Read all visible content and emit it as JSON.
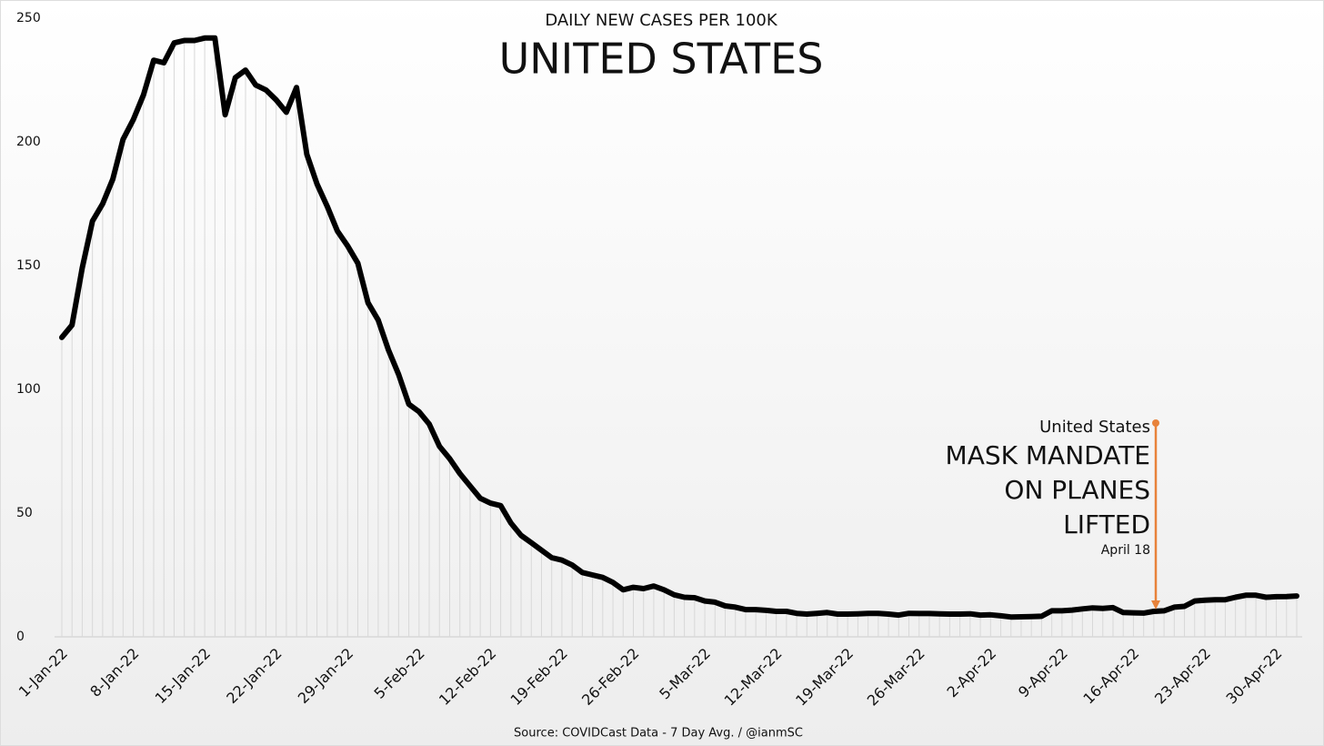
{
  "chart_data": {
    "type": "line",
    "title": "UNITED STATES",
    "subtitle": "DAILY NEW CASES PER 100K",
    "source": "Source: COVIDCast Data - 7 Day Avg. / @ianmSC",
    "categories": [
      "1-Jan-22",
      null,
      null,
      null,
      null,
      null,
      null,
      "8-Jan-22",
      null,
      null,
      null,
      null,
      null,
      null,
      "15-Jan-22",
      null,
      null,
      null,
      null,
      null,
      null,
      "22-Jan-22",
      null,
      null,
      null,
      null,
      null,
      null,
      "29-Jan-22",
      null,
      null,
      null,
      null,
      null,
      null,
      "5-Feb-22",
      null,
      null,
      null,
      null,
      null,
      null,
      "12-Feb-22",
      null,
      null,
      null,
      null,
      null,
      null,
      "19-Feb-22",
      null,
      null,
      null,
      null,
      null,
      null,
      "26-Feb-22",
      null,
      null,
      null,
      null,
      null,
      null,
      "5-Mar-22",
      null,
      null,
      null,
      null,
      null,
      null,
      "12-Mar-22",
      null,
      null,
      null,
      null,
      null,
      null,
      "19-Mar-22",
      null,
      null,
      null,
      null,
      null,
      null,
      "26-Mar-22",
      null,
      null,
      null,
      null,
      null,
      null,
      "2-Apr-22",
      null,
      null,
      null,
      null,
      null,
      null,
      "9-Apr-22",
      null,
      null,
      null,
      null,
      null,
      null,
      "16-Apr-22",
      null,
      null,
      null,
      null,
      null,
      null,
      "23-Apr-22",
      null,
      null,
      null,
      null,
      null,
      null,
      "30-Apr-22",
      null,
      null
    ],
    "values": [
      121,
      126,
      149,
      168,
      175,
      185,
      201,
      209,
      219,
      233,
      232,
      240,
      241,
      241,
      242,
      242,
      211,
      226,
      229,
      223,
      221,
      217,
      212,
      222,
      195,
      183,
      174,
      164,
      158,
      151,
      135,
      128,
      116,
      106,
      94,
      91,
      86,
      77,
      72,
      66,
      61,
      56,
      54,
      53,
      46,
      41,
      38,
      35,
      32,
      31,
      29,
      26,
      25,
      24,
      22,
      19,
      20,
      19.5,
      20.5,
      19,
      17,
      16,
      15.8,
      14.5,
      14,
      12.5,
      12,
      11,
      11,
      10.7,
      10.3,
      10.3,
      9.5,
      9.2,
      9.5,
      9.8,
      9.2,
      9.2,
      9.3,
      9.5,
      9.5,
      9.2,
      8.8,
      9.5,
      9.4,
      9.4,
      9.3,
      9.2,
      9.2,
      9.3,
      8.8,
      8.9,
      8.5,
      8,
      8.1,
      8.2,
      8.3,
      10.5,
      10.5,
      10.8,
      11.3,
      11.7,
      11.5,
      11.8,
      9.8,
      9.7,
      9.6,
      10.3,
      10.5,
      12,
      12.3,
      14.5,
      14.8,
      15,
      15,
      16,
      16.8,
      16.8,
      16,
      16.2,
      16.3,
      16.5
    ],
    "color": "#000000",
    "ylim": [
      0,
      250
    ],
    "yticks": [
      0,
      50,
      100,
      150,
      200,
      250
    ],
    "annotation": {
      "label": "United States",
      "lines": [
        "MASK MANDATE",
        "ON PLANES",
        "LIFTED"
      ],
      "date": "April 18",
      "color": "#e8823a"
    }
  }
}
